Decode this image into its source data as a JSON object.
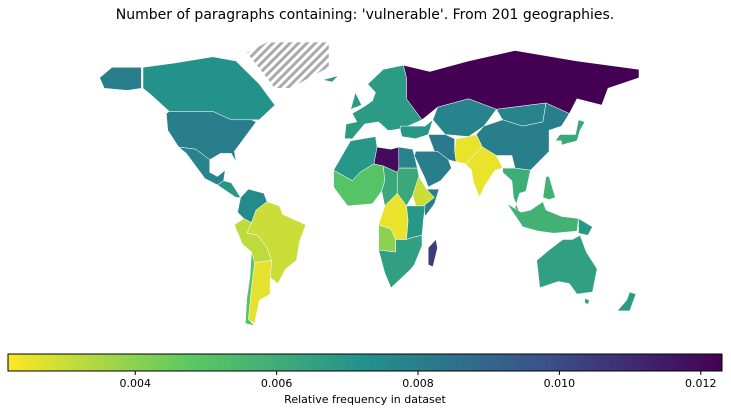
{
  "chart_data": {
    "type": "choropleth",
    "title": "Number of paragraphs containing: 'vulnerable'. From 201 geographies.",
    "values": [
      0.0072,
      0.008,
      0.0078,
      0.007,
      0.0075,
      0.003,
      0.0032,
      0.0026,
      0.005,
      0.0068,
      0.0124,
      0.0078,
      0.0078,
      0.008,
      0.0025,
      0.0025,
      0.0082,
      0.007,
      0.008,
      0.007,
      0.012,
      0.0078,
      0.005,
      0.0062,
      0.0062,
      0.003,
      0.008,
      0.0025,
      0.007,
      0.004,
      0.0066,
      0.0105,
      0.006,
      0.0058,
      0.0058,
      0.0062,
      0.0066,
      0.0068,
      0.007
    ],
    "colorbar": {
      "label": "Relative frequency in dataset",
      "xlim": [
        0.0022,
        0.0123
      ],
      "xticks": [
        0.004,
        0.006,
        0.008,
        {
          "value": 0.01,
          "label": "0.010"
        },
        0.012
      ],
      "colors": [
        "#fde725",
        "#5ec962",
        "#21918c",
        "#3b528b",
        "#440154"
      ]
    }
  }
}
